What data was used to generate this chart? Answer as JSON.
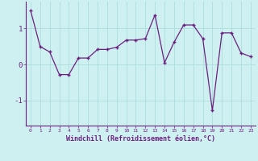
{
  "x": [
    0,
    1,
    2,
    3,
    4,
    5,
    6,
    7,
    8,
    9,
    10,
    11,
    12,
    13,
    14,
    15,
    16,
    17,
    18,
    19,
    20,
    21,
    22,
    23
  ],
  "y": [
    1.5,
    0.5,
    0.35,
    -0.28,
    -0.28,
    0.18,
    0.18,
    0.42,
    0.42,
    0.48,
    0.68,
    0.68,
    0.72,
    1.38,
    0.05,
    0.62,
    1.1,
    1.1,
    0.72,
    -1.28,
    0.88,
    0.88,
    0.32,
    0.22
  ],
  "line_color": "#6b2080",
  "marker": "+",
  "marker_size": 3.5,
  "marker_linewidth": 1.0,
  "bg_color": "#cff0f0",
  "grid_color": "#aadddd",
  "xlabel": "Windchill (Refroidissement éolien,°C)",
  "xlabel_color": "#6b2080",
  "tick_color": "#6b2080",
  "yticks": [
    -1,
    0,
    1
  ],
  "ylim": [
    -1.7,
    1.75
  ],
  "xlim": [
    -0.5,
    23.5
  ]
}
